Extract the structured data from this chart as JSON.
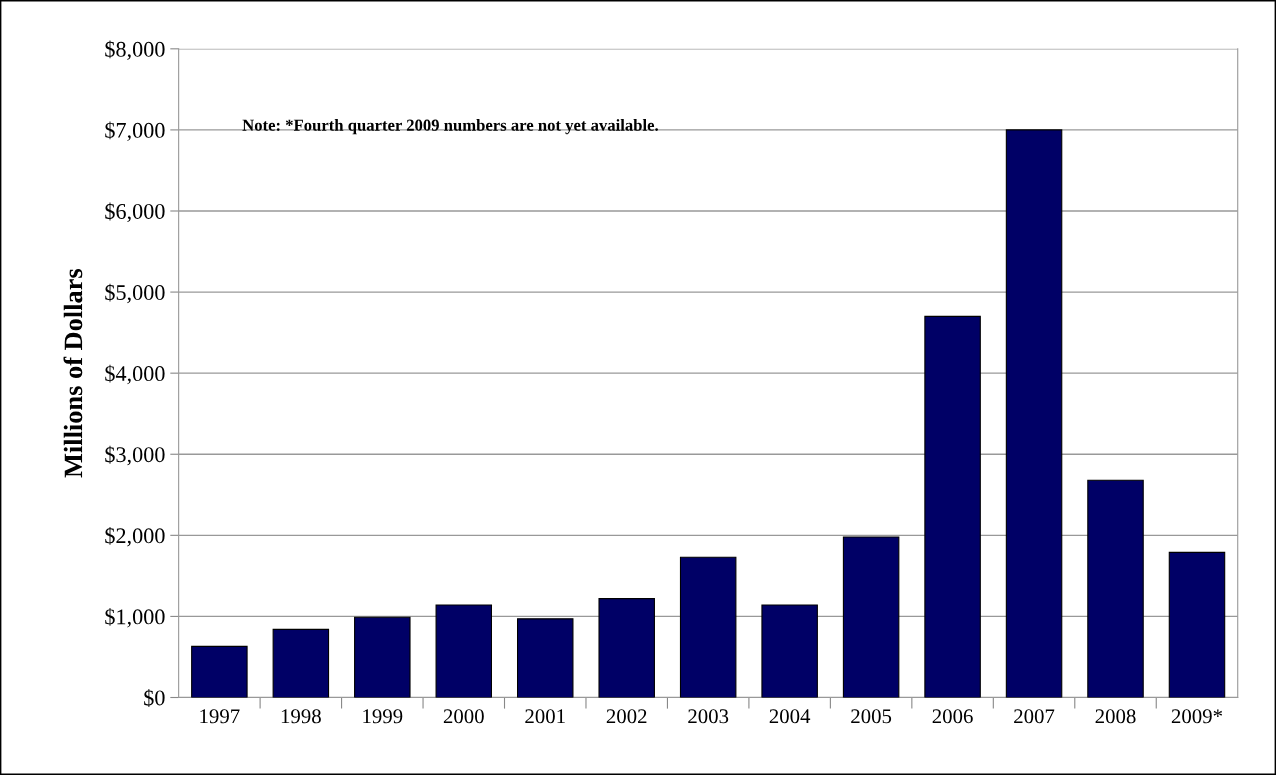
{
  "chart_data": {
    "type": "bar",
    "ylabel": "Millions of Dollars",
    "categories": [
      "1997",
      "1998",
      "1999",
      "2000",
      "2001",
      "2002",
      "2003",
      "2004",
      "2005",
      "2006",
      "2007",
      "2008",
      "2009*"
    ],
    "values": [
      630,
      840,
      990,
      1140,
      970,
      1220,
      1730,
      1140,
      1980,
      4700,
      7000,
      2680,
      1790
    ],
    "color": "#000066",
    "ylim": [
      0,
      8000
    ],
    "yticks": [
      {
        "value": 0,
        "label": "$0"
      },
      {
        "value": 1000,
        "label": "$1,000"
      },
      {
        "value": 2000,
        "label": "$2,000"
      },
      {
        "value": 3000,
        "label": "$3,000"
      },
      {
        "value": 4000,
        "label": "$4,000"
      },
      {
        "value": 5000,
        "label": "$5,000"
      },
      {
        "value": 6000,
        "label": "$6,000"
      },
      {
        "value": 7000,
        "label": "$7,000"
      },
      {
        "value": 8000,
        "label": "$8,000"
      }
    ],
    "grid": "y",
    "annotations": [
      "Note: *Fourth quarter 2009 numbers are not yet available."
    ]
  }
}
